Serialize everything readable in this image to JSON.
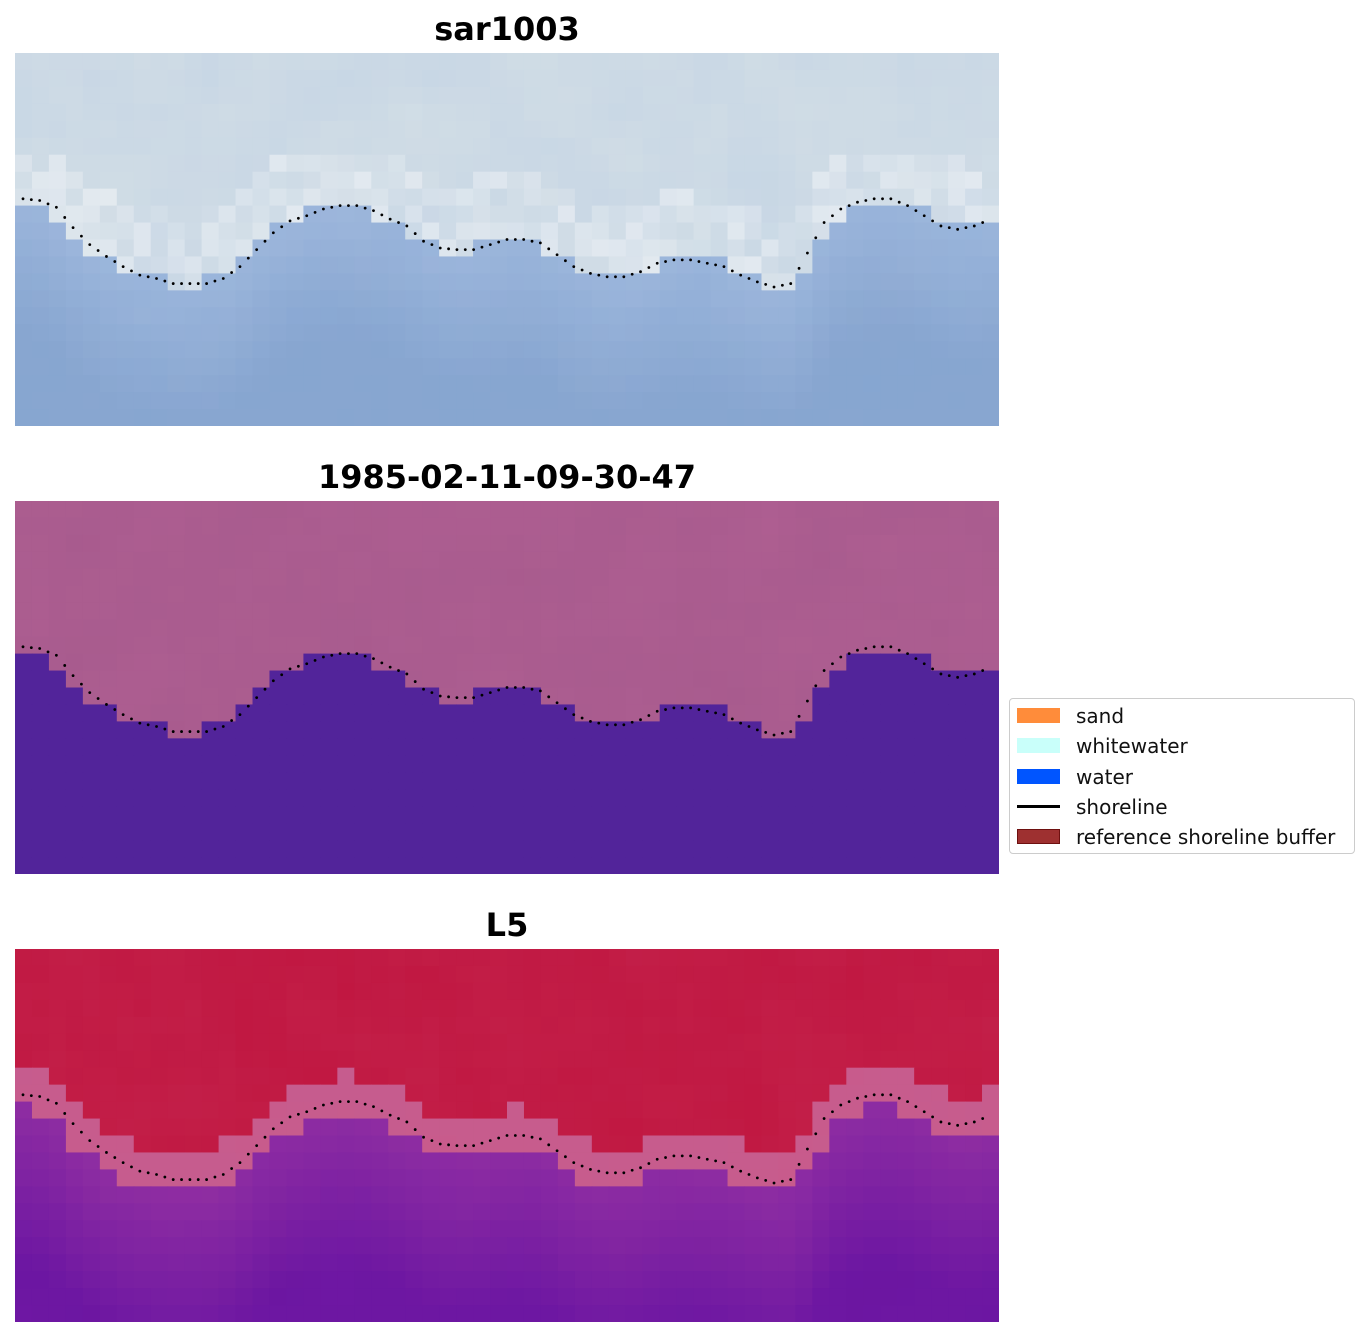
{
  "chart_data": [
    {
      "type": "heatmap",
      "title": "sar1003",
      "image": "sar1003 RGB composite",
      "colors": {
        "upper": "#d4dfe6",
        "lower": "#8aa6cf",
        "bright": "#f4f6f9"
      }
    },
    {
      "type": "heatmap",
      "title": "1985-02-11-09-30-47",
      "image": "classification overlay",
      "colors": {
        "upper": "#a65a8d",
        "lower": "#52249a"
      }
    },
    {
      "type": "heatmap",
      "title": "L5",
      "image": "L5 index",
      "colors": {
        "upper": "#c0143e",
        "lower": "#6a15a0",
        "band": "#c45c90"
      }
    }
  ],
  "legend": {
    "placement": "center-right",
    "items": [
      {
        "label": "sand",
        "color": "#ff8c3a",
        "kind": "patch"
      },
      {
        "label": "whitewater",
        "color": "#c9fffa",
        "kind": "patch"
      },
      {
        "label": "water",
        "color": "#0055ff",
        "kind": "patch"
      },
      {
        "label": "shoreline",
        "color": "#000000",
        "kind": "line"
      },
      {
        "label": "reference shoreline buffer",
        "color": "#9e3030",
        "kind": "patch"
      }
    ]
  },
  "shoreline": {
    "style": "dotted",
    "color": "#000000",
    "x": [
      0,
      1,
      2,
      3,
      4,
      5,
      6,
      7,
      8,
      9,
      10,
      11,
      12,
      13,
      14,
      15,
      16,
      17,
      18,
      19,
      20,
      21,
      22,
      23,
      24,
      25,
      26,
      27,
      28,
      29,
      30,
      31,
      32,
      33,
      34,
      35,
      36,
      37,
      38,
      39,
      40,
      41,
      42,
      43,
      44,
      45,
      46,
      47,
      48,
      49,
      50,
      51,
      52,
      53,
      54,
      55,
      56,
      57,
      58
    ],
    "y": [
      8.6,
      8.7,
      9.1,
      10.3,
      11.3,
      12.0,
      12.6,
      13.1,
      13.3,
      13.6,
      13.6,
      13.6,
      13.3,
      12.6,
      11.6,
      10.6,
      9.9,
      9.6,
      9.2,
      9.0,
      9.0,
      9.3,
      9.8,
      10.2,
      11.1,
      11.5,
      11.6,
      11.6,
      11.3,
      11.0,
      11.0,
      11.2,
      11.9,
      12.6,
      13.0,
      13.2,
      13.2,
      12.9,
      12.4,
      12.2,
      12.2,
      12.4,
      12.6,
      13.1,
      13.5,
      13.8,
      13.6,
      11.8,
      10.0,
      9.2,
      8.8,
      8.6,
      8.6,
      9.0,
      9.6,
      10.2,
      10.4,
      10.2,
      9.8
    ]
  }
}
